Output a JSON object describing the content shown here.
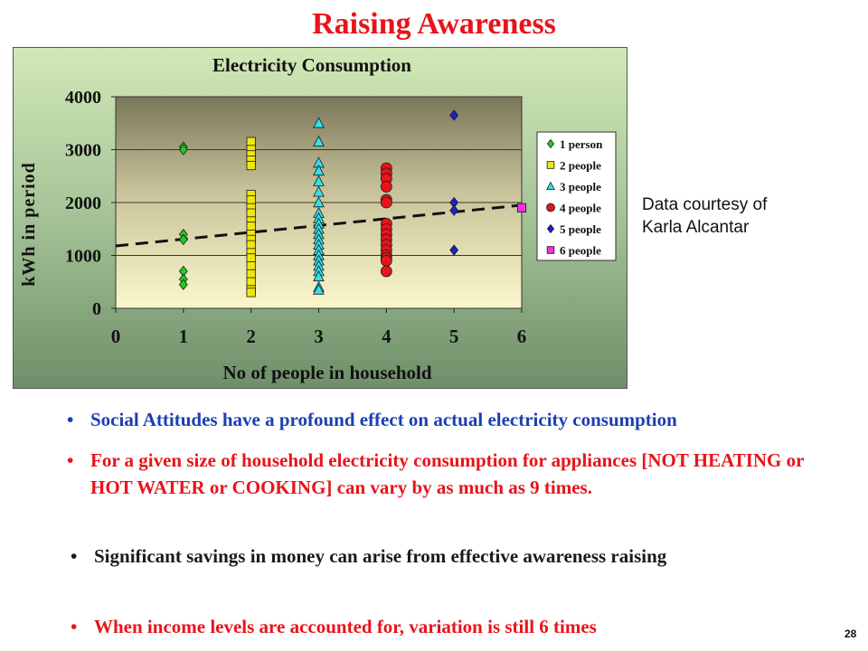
{
  "slide": {
    "title": "Raising Awareness",
    "courtesy_line1": "Data courtesy of",
    "courtesy_line2": "Karla Alcantar",
    "page_number": "28"
  },
  "bullets": [
    {
      "text": "Social Attitudes have a profound effect on actual electricity consumption",
      "color": "#1a3fb3"
    },
    {
      "text": "For a given size of household electricity consumption for appliances [NOT HEATING or HOT WATER or COOKING] can vary by as much as 9 times.",
      "color": "#e8141b"
    },
    {
      "text": "Significant savings in money can arise from effective awareness raising",
      "color": "#1a1a1a"
    },
    {
      "text": "When income levels are accounted for,  variation is still 6 times",
      "color": "#e8141b"
    }
  ],
  "chart_data": {
    "type": "scatter",
    "title": "Electricity Consumption",
    "xlabel": "No of people in household",
    "ylabel": "kWh in period",
    "xlim": [
      0,
      6
    ],
    "ylim": [
      0,
      4000
    ],
    "x_ticks": [
      "0",
      "1",
      "2",
      "3",
      "4",
      "5",
      "6"
    ],
    "y_ticks": [
      "0",
      "1000",
      "2000",
      "3000",
      "4000"
    ],
    "grid": true,
    "legend_position": "right",
    "series": [
      {
        "name": "1 person",
        "color": "#22cc22",
        "marker": "diamond",
        "x": [
          1,
          1,
          1,
          1,
          1,
          1,
          1
        ],
        "y": [
          3050,
          3000,
          1400,
          1300,
          700,
          550,
          450
        ]
      },
      {
        "name": "2 people",
        "color": "#f2e60e",
        "marker": "square",
        "x": [
          2,
          2,
          2,
          2,
          2,
          2,
          2,
          2,
          2,
          2,
          2,
          2,
          2,
          2,
          2,
          2,
          2,
          2,
          2,
          2,
          2
        ],
        "y": [
          3150,
          3000,
          2900,
          2800,
          2700,
          2150,
          2050,
          1900,
          1800,
          1650,
          1550,
          1400,
          1300,
          1200,
          1050,
          950,
          800,
          650,
          500,
          350,
          300
        ]
      },
      {
        "name": "3 people",
        "color": "#33e0ea",
        "marker": "triangle",
        "x": [
          3,
          3,
          3,
          3,
          3,
          3,
          3,
          3,
          3,
          3,
          3,
          3,
          3,
          3,
          3,
          3,
          3,
          3,
          3,
          3,
          3,
          3
        ],
        "y": [
          3500,
          3150,
          2750,
          2600,
          2400,
          2200,
          2000,
          1800,
          1700,
          1600,
          1500,
          1400,
          1300,
          1200,
          1100,
          1000,
          900,
          800,
          700,
          600,
          400,
          350
        ]
      },
      {
        "name": "4 people",
        "color": "#e8141b",
        "marker": "circle",
        "x": [
          4,
          4,
          4,
          4,
          4,
          4,
          4,
          4,
          4,
          4,
          4,
          4,
          4,
          4,
          4,
          4
        ],
        "y": [
          2650,
          2550,
          2450,
          2300,
          2050,
          2000,
          1600,
          1500,
          1400,
          1300,
          1200,
          1100,
          1000,
          950,
          900,
          700
        ]
      },
      {
        "name": "5 people",
        "color": "#1a22cc",
        "marker": "diamond",
        "x": [
          5,
          5,
          5,
          5
        ],
        "y": [
          3650,
          2000,
          1850,
          1100
        ]
      },
      {
        "name": "6 people",
        "color": "#ee33dd",
        "marker": "square",
        "x": [
          6
        ],
        "y": [
          1900
        ]
      }
    ],
    "trendline": {
      "style": "dashed",
      "x": [
        0,
        6
      ],
      "y": [
        1180,
        1950
      ]
    }
  }
}
